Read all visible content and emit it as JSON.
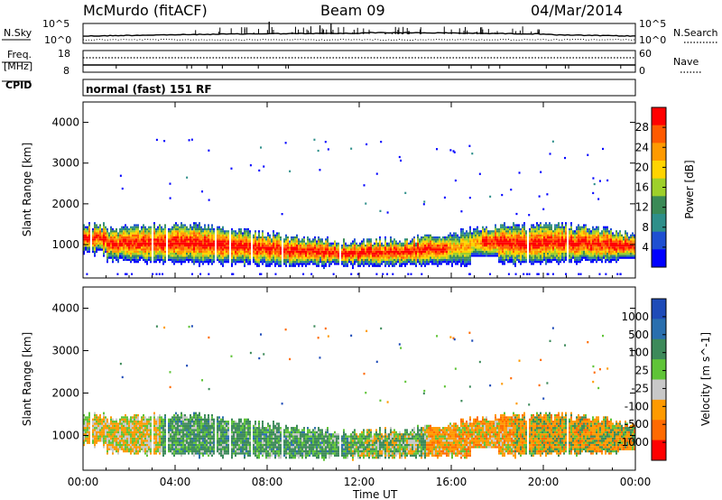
{
  "header": {
    "station": "McMurdo (fitACF)",
    "beam": "Beam 09",
    "date": "04/Mar/2014"
  },
  "noise_panel": {
    "left_label": "N.Sky",
    "right_label": "N.Search",
    "left_ticks": [
      "10^5",
      "10^0"
    ],
    "right_ticks": [
      "10^5",
      "10^0"
    ]
  },
  "freq_panel": {
    "left_label_1": "Freq.",
    "left_label_2": "[MHz]",
    "right_label": "Nave",
    "left_ticks": [
      "18",
      "8"
    ],
    "right_ticks": [
      "60",
      "0"
    ]
  },
  "cpid": {
    "label": "CPID",
    "mode": "normal (fast) 151 RF"
  },
  "chart_data": [
    {
      "type": "heatmap",
      "title": "Power",
      "ylabel": "Slant Range [km]",
      "colorbar_label": "Power [dB]",
      "ylim": [
        180,
        4500
      ],
      "yticks": [
        "1000",
        "2000",
        "3000",
        "4000"
      ],
      "colorbar_ticks": [
        "28",
        "24",
        "20",
        "16",
        "12",
        "8",
        "4"
      ],
      "colorscale": [
        "#ff0000",
        "#ff5a00",
        "#ff9a00",
        "#ffd400",
        "#9ed02a",
        "#3a8a56",
        "#2e8f8a",
        "#1e4fd2",
        "#0000ff"
      ],
      "description_values": {
        "echo_band_range_km": [
          400,
          1500
        ],
        "peak_power_db": 30
      }
    },
    {
      "type": "heatmap",
      "title": "Velocity",
      "ylabel": "Slant Range [km]",
      "colorbar_label": "Velocity [m s^-1]",
      "ylim": [
        180,
        4500
      ],
      "yticks": [
        "1000",
        "2000",
        "3000",
        "4000"
      ],
      "colorbar_ticks": [
        "1000",
        "500",
        "100",
        "25",
        "-25",
        "-100",
        "-500",
        "-1000"
      ],
      "colorscale": [
        "#1e4bb8",
        "#2a6fae",
        "#3d8a5a",
        "#5fc437",
        "#c8c8c8",
        "#ff9a00",
        "#ff6a00",
        "#ff0000"
      ]
    }
  ],
  "x_axis": {
    "label": "Time UT",
    "ticks": [
      "00:00",
      "04:00",
      "08:00",
      "12:00",
      "16:00",
      "20:00",
      "00:00"
    ]
  }
}
